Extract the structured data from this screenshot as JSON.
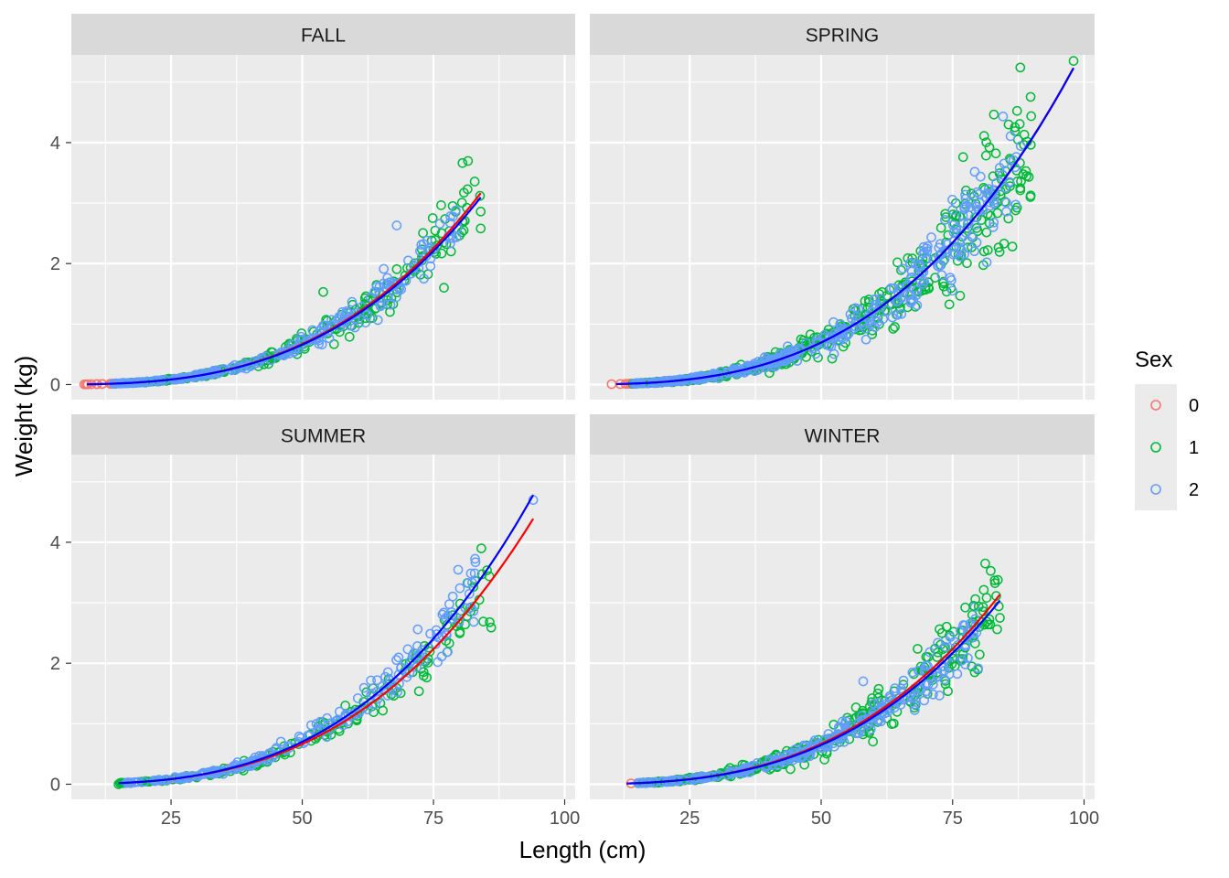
{
  "chart_data": {
    "type": "scatter",
    "facet_layout": "2x2 grid",
    "xlabel": "Length (cm)",
    "ylabel": "Weight (kg)",
    "xlim": [
      6,
      102
    ],
    "ylim": [
      -0.25,
      5.45
    ],
    "x_ticks": [
      25,
      50,
      75,
      100
    ],
    "y_ticks": [
      0,
      2,
      4
    ],
    "grid": true,
    "legend": {
      "title": "Sex",
      "position": "right",
      "entries": [
        {
          "label": "0",
          "color": "#F8766D"
        },
        {
          "label": "1",
          "color": "#00BA38"
        },
        {
          "label": "2",
          "color": "#619CFF"
        }
      ]
    },
    "fit_lines": [
      {
        "color": "#FF0000"
      },
      {
        "color": "#0000FF"
      }
    ],
    "panels": [
      {
        "title": "FALL",
        "fits": [
          {
            "color": "#FF0000",
            "x_range": [
              9,
              84
            ],
            "a": 5.58e-06,
            "b": 2.99
          },
          {
            "color": "#0000FF",
            "x_range": [
              9,
              84
            ],
            "a": 5.58e-06,
            "b": 2.985
          }
        ],
        "groups": [
          {
            "sex": "0",
            "x_range": [
              8,
              26
            ],
            "count": 28,
            "a": 5.58e-06,
            "b": 2.99,
            "noise": 0.05
          },
          {
            "sex": "1",
            "x_range": [
              14,
              84
            ],
            "count": 240,
            "a": 5.58e-06,
            "b": 2.99,
            "noise": 0.11
          },
          {
            "sex": "2",
            "x_range": [
              14,
              80
            ],
            "count": 220,
            "a": 5.58e-06,
            "b": 2.99,
            "noise": 0.09
          }
        ],
        "highlights": [
          {
            "sex": "1",
            "x": 54,
            "y": 1.53
          },
          {
            "sex": "2",
            "x": 68,
            "y": 2.63
          },
          {
            "sex": "1",
            "x": 84,
            "y": 2.86
          },
          {
            "sex": "1",
            "x": 84,
            "y": 2.58
          },
          {
            "sex": "1",
            "x": 77,
            "y": 1.6
          }
        ]
      },
      {
        "title": "SPRING",
        "fits": [
          {
            "color": "#FF0000",
            "x_range": [
              11,
              98
            ],
            "a": 5.56e-06,
            "b": 3.0
          },
          {
            "color": "#0000FF",
            "x_range": [
              11,
              98
            ],
            "a": 5.56e-06,
            "b": 3.0
          }
        ],
        "groups": [
          {
            "sex": "0",
            "x_range": [
              10,
              24
            ],
            "count": 24,
            "a": 5.56e-06,
            "b": 3.0,
            "noise": 0.05
          },
          {
            "sex": "1",
            "x_range": [
              14,
              90
            ],
            "count": 420,
            "a": 5.56e-06,
            "b": 3.0,
            "noise": 0.16
          },
          {
            "sex": "2",
            "x_range": [
              14,
              88
            ],
            "count": 360,
            "a": 5.56e-06,
            "b": 3.0,
            "noise": 0.14
          }
        ],
        "highlights": [
          {
            "sex": "1",
            "x": 98,
            "y": 5.35
          },
          {
            "sex": "1",
            "x": 82,
            "y": 3.92
          },
          {
            "sex": "1",
            "x": 77,
            "y": 3.76
          },
          {
            "sex": "1",
            "x": 88,
            "y": 3.36
          },
          {
            "sex": "1",
            "x": 87,
            "y": 2.88
          },
          {
            "sex": "2",
            "x": 85,
            "y": 3.25
          },
          {
            "sex": "1",
            "x": 81,
            "y": 2.2
          }
        ]
      },
      {
        "title": "SUMMER",
        "fits": [
          {
            "color": "#FF0000",
            "x_range": [
              16,
              94
            ],
            "a": 5.53e-06,
            "b": 2.99
          },
          {
            "color": "#0000FF",
            "x_range": [
              15,
              94
            ],
            "a": 4.8e-06,
            "b": 3.04
          }
        ],
        "groups": [
          {
            "sex": "0",
            "x_range": [
              16,
              45
            ],
            "count": 14,
            "a": 5.53e-06,
            "b": 2.99,
            "noise": 0.06
          },
          {
            "sex": "1",
            "x_range": [
              15,
              86
            ],
            "count": 170,
            "a": 5.53e-06,
            "b": 2.99,
            "noise": 0.11
          },
          {
            "sex": "2",
            "x_range": [
              16,
              83
            ],
            "count": 200,
            "a": 4.8e-06,
            "b": 3.04,
            "noise": 0.1
          }
        ],
        "highlights": [
          {
            "sex": "2",
            "x": 94,
            "y": 4.7
          },
          {
            "sex": "2",
            "x": 83,
            "y": 3.67
          },
          {
            "sex": "1",
            "x": 86,
            "y": 2.59
          },
          {
            "sex": "2",
            "x": 72,
            "y": 2.56
          },
          {
            "sex": "1",
            "x": 78,
            "y": 2.33
          },
          {
            "sex": "1",
            "x": 15,
            "y": 0.0
          }
        ]
      },
      {
        "title": "WINTER",
        "fits": [
          {
            "color": "#FF0000",
            "x_range": [
              13,
              84
            ],
            "a": 5.78e-06,
            "b": 2.98
          },
          {
            "color": "#0000FF",
            "x_range": [
              13,
              84
            ],
            "a": 5.6e-06,
            "b": 2.98
          }
        ],
        "groups": [
          {
            "sex": "0",
            "x_range": [
              13,
              30
            ],
            "count": 22,
            "a": 5.78e-06,
            "b": 2.98,
            "noise": 0.05
          },
          {
            "sex": "1",
            "x_range": [
              15,
              84
            ],
            "count": 340,
            "a": 5.78e-06,
            "b": 2.98,
            "noise": 0.14
          },
          {
            "sex": "2",
            "x_range": [
              15,
              80
            ],
            "count": 260,
            "a": 5.6e-06,
            "b": 2.98,
            "noise": 0.11
          }
        ],
        "highlights": [
          {
            "sex": "1",
            "x": 83,
            "y": 3.37
          },
          {
            "sex": "1",
            "x": 79,
            "y": 2.95
          },
          {
            "sex": "1",
            "x": 84,
            "y": 2.75
          },
          {
            "sex": "1",
            "x": 73,
            "y": 2.5
          },
          {
            "sex": "2",
            "x": 58,
            "y": 1.7
          }
        ]
      }
    ]
  }
}
